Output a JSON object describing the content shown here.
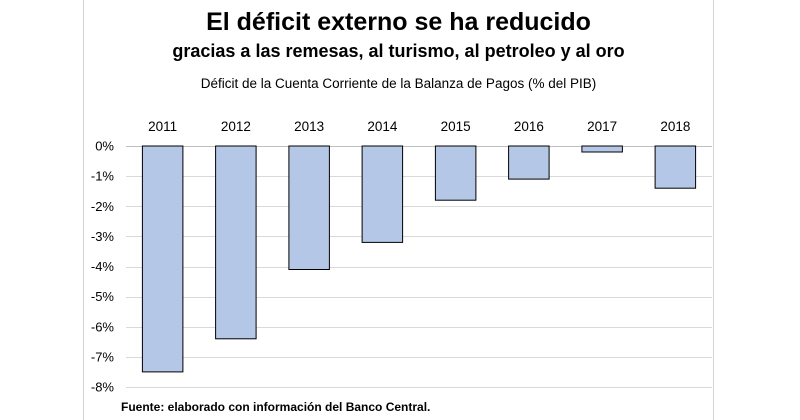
{
  "chart_data": {
    "type": "bar",
    "title": "El déficit externo se ha reducido",
    "subtitle": "gracias a las remesas, al turismo, al petroleo y al oro",
    "caption": "Déficit de la Cuenta Corriente de la Balanza de Pagos (% del PIB)",
    "source": "Fuente: elaborado con información del Banco  Central.",
    "categories": [
      "2011",
      "2012",
      "2013",
      "2014",
      "2015",
      "2016",
      "2017",
      "2018"
    ],
    "values": [
      -7.5,
      -6.4,
      -4.1,
      -3.2,
      -1.8,
      -1.1,
      -0.2,
      -1.4
    ],
    "ylim": [
      -8,
      0
    ],
    "yticks": [
      0,
      -1,
      -2,
      -3,
      -4,
      -5,
      -6,
      -7,
      -8
    ],
    "ytick_labels": [
      "0%",
      "-1%",
      "-2%",
      "-3%",
      "-4%",
      "-5%",
      "-6%",
      "-7%",
      "-8%"
    ],
    "xlabel": "",
    "ylabel": "",
    "grid": true,
    "category_axis_position": "top",
    "bar_color": "#b4c7e7",
    "bar_edge_color": "#000000",
    "grid_color": "#d9d9d9"
  }
}
